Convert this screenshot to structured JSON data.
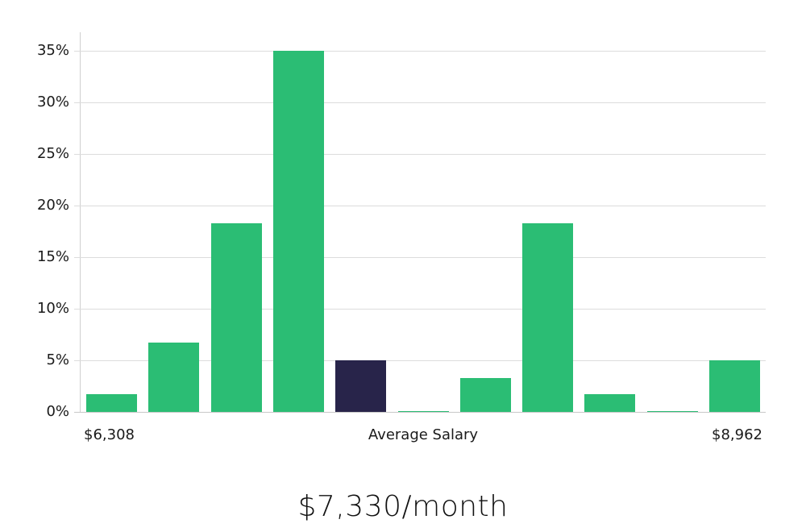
{
  "chart_data": {
    "type": "bar",
    "title": "",
    "xlabel": "Average Salary",
    "ylabel": "",
    "x_range_labels": {
      "min": "$6,308",
      "max": "$8,962"
    },
    "categories": [
      "bin1",
      "bin2",
      "bin3",
      "bin4",
      "bin5",
      "bin6",
      "bin7",
      "bin8",
      "bin9",
      "bin10",
      "bin11"
    ],
    "values": [
      1.7,
      6.7,
      18.3,
      35.0,
      5.0,
      0.0,
      3.3,
      18.3,
      1.7,
      0.0,
      5.0
    ],
    "highlight_index": 4,
    "yticks": [
      "0%",
      "5%",
      "10%",
      "15%",
      "20%",
      "25%",
      "30%",
      "35%"
    ],
    "ylim": [
      0,
      35
    ],
    "grid": true,
    "colors": {
      "bar": "#2bbd74",
      "highlight": "#28244a",
      "grid": "#dcdcdc"
    }
  },
  "labels": {
    "x_min": "$6,308",
    "x_center": "Average Salary",
    "x_max": "$8,962",
    "headline": "$7,330/month"
  }
}
